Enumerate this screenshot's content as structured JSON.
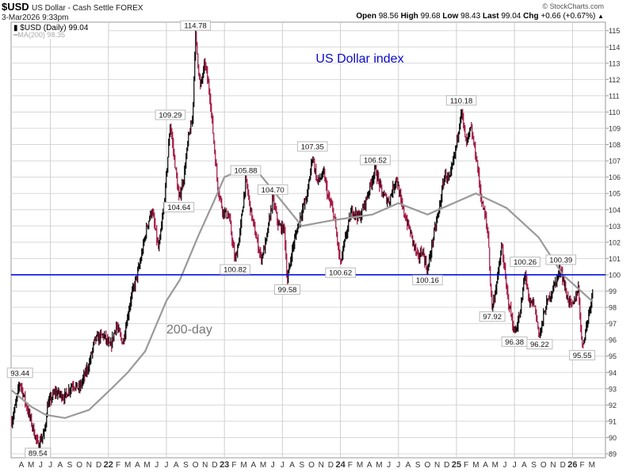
{
  "header": {
    "symbol": "$USD",
    "name": "US Dollar - Cash Settle FOREX",
    "datetime": "3-Mar2026 9:33pm",
    "copyright": "© StockCharts.com",
    "quote": {
      "open_label": "Open",
      "open": "98.56",
      "high_label": "High",
      "high": "99.68",
      "low_label": "Low",
      "low": "98.43",
      "last_label": "Last",
      "last": "99.04",
      "chg_label": "Chg",
      "chg": "+0.66 (+0.67%)",
      "direction": "▲"
    }
  },
  "legend": {
    "price": "$USD (Daily) 99.04",
    "ma": "MA(200) 98.35"
  },
  "colors": {
    "up": "#000000",
    "down": "#a0103c",
    "ma": "#9a9a9a",
    "hline": "#0010e0",
    "title": "#0a0ac8",
    "grid": "#d8d8d8"
  },
  "chart_data": {
    "type": "line",
    "title": "US Dollar index",
    "ma_annotation": "200-day",
    "time_unit": "months since Apr 2021",
    "ylim": [
      89,
      115
    ],
    "yticks": [
      89,
      90,
      91,
      92,
      93,
      94,
      95,
      96,
      97,
      98,
      99,
      100,
      101,
      102,
      103,
      104,
      105,
      106,
      107,
      108,
      109,
      110,
      111,
      112,
      113,
      114,
      115
    ],
    "horizontal_line": 100,
    "xticks": [
      {
        "t": 0,
        "label": "A"
      },
      {
        "t": 1,
        "label": "M"
      },
      {
        "t": 2,
        "label": "J"
      },
      {
        "t": 3,
        "label": "J"
      },
      {
        "t": 4,
        "label": "A"
      },
      {
        "t": 5,
        "label": "S"
      },
      {
        "t": 6,
        "label": "O"
      },
      {
        "t": 7,
        "label": "N"
      },
      {
        "t": 8,
        "label": "D"
      },
      {
        "t": 9,
        "label": "22",
        "year": true
      },
      {
        "t": 10,
        "label": "F"
      },
      {
        "t": 11,
        "label": "M"
      },
      {
        "t": 12,
        "label": "A"
      },
      {
        "t": 13,
        "label": "M"
      },
      {
        "t": 14,
        "label": "J"
      },
      {
        "t": 15,
        "label": "J"
      },
      {
        "t": 16,
        "label": "A"
      },
      {
        "t": 17,
        "label": "S"
      },
      {
        "t": 18,
        "label": "O"
      },
      {
        "t": 19,
        "label": "N"
      },
      {
        "t": 20,
        "label": "D"
      },
      {
        "t": 21,
        "label": "23",
        "year": true
      },
      {
        "t": 22,
        "label": "F"
      },
      {
        "t": 23,
        "label": "M"
      },
      {
        "t": 24,
        "label": "A"
      },
      {
        "t": 25,
        "label": "M"
      },
      {
        "t": 26,
        "label": "J"
      },
      {
        "t": 27,
        "label": "J"
      },
      {
        "t": 28,
        "label": "A"
      },
      {
        "t": 29,
        "label": "S"
      },
      {
        "t": 30,
        "label": "O"
      },
      {
        "t": 31,
        "label": "N"
      },
      {
        "t": 32,
        "label": "D"
      },
      {
        "t": 33,
        "label": "24",
        "year": true
      },
      {
        "t": 34,
        "label": "F"
      },
      {
        "t": 35,
        "label": "M"
      },
      {
        "t": 36,
        "label": "A"
      },
      {
        "t": 37,
        "label": "M"
      },
      {
        "t": 38,
        "label": "J"
      },
      {
        "t": 39,
        "label": "J"
      },
      {
        "t": 40,
        "label": "A"
      },
      {
        "t": 41,
        "label": "S"
      },
      {
        "t": 42,
        "label": "O"
      },
      {
        "t": 43,
        "label": "N"
      },
      {
        "t": 44,
        "label": "D"
      },
      {
        "t": 45,
        "label": "25",
        "year": true
      },
      {
        "t": 46,
        "label": "F"
      },
      {
        "t": 47,
        "label": "M"
      },
      {
        "t": 48,
        "label": "A"
      },
      {
        "t": 49,
        "label": "M"
      },
      {
        "t": 50,
        "label": "J"
      },
      {
        "t": 51,
        "label": "J"
      },
      {
        "t": 52,
        "label": "A"
      },
      {
        "t": 53,
        "label": "S"
      },
      {
        "t": 54,
        "label": "O"
      },
      {
        "t": 55,
        "label": "N"
      },
      {
        "t": 56,
        "label": "D"
      },
      {
        "t": 57,
        "label": "26",
        "year": true
      },
      {
        "t": 58,
        "label": "F"
      },
      {
        "t": 59,
        "label": "M"
      }
    ],
    "series": [
      {
        "name": "$USD (Daily)",
        "points": [
          [
            -1,
            91.0
          ],
          [
            -0.6,
            92.0
          ],
          [
            -0.15,
            93.44
          ],
          [
            0.5,
            92.0
          ],
          [
            1.0,
            91.0
          ],
          [
            1.7,
            89.54
          ],
          [
            2.4,
            90.3
          ],
          [
            2.7,
            92.0
          ],
          [
            3.5,
            92.8
          ],
          [
            4.5,
            92.5
          ],
          [
            5.3,
            93.3
          ],
          [
            6.0,
            93.0
          ],
          [
            7.0,
            94.5
          ],
          [
            7.6,
            96.0
          ],
          [
            8.5,
            96.3
          ],
          [
            9.2,
            95.5
          ],
          [
            9.8,
            96.9
          ],
          [
            10.5,
            95.8
          ],
          [
            11.3,
            98.5
          ],
          [
            12.2,
            100.5
          ],
          [
            13.0,
            103.0
          ],
          [
            13.5,
            104.0
          ],
          [
            14.2,
            101.5
          ],
          [
            14.8,
            104.5
          ],
          [
            15.4,
            109.29
          ],
          [
            16.3,
            104.64
          ],
          [
            16.8,
            106.0
          ],
          [
            17.3,
            108.5
          ],
          [
            17.7,
            109.5
          ],
          [
            18.0,
            114.78
          ],
          [
            18.5,
            111.5
          ],
          [
            19.0,
            113.0
          ],
          [
            19.5,
            111.0
          ],
          [
            20.0,
            107.5
          ],
          [
            20.3,
            105.5
          ],
          [
            20.8,
            104.0
          ],
          [
            21.5,
            103.5
          ],
          [
            22.1,
            100.82
          ],
          [
            22.6,
            102.5
          ],
          [
            23.2,
            105.88
          ],
          [
            23.7,
            104.0
          ],
          [
            24.2,
            102.5
          ],
          [
            24.8,
            101.0
          ],
          [
            25.3,
            102.0
          ],
          [
            26.0,
            104.7
          ],
          [
            26.6,
            103.0
          ],
          [
            27.2,
            102.8
          ],
          [
            27.5,
            99.58
          ],
          [
            28.0,
            101.5
          ],
          [
            28.8,
            103.5
          ],
          [
            29.6,
            105.0
          ],
          [
            30.1,
            107.35
          ],
          [
            30.6,
            105.7
          ],
          [
            31.3,
            106.2
          ],
          [
            31.7,
            104.8
          ],
          [
            32.3,
            103.8
          ],
          [
            33.0,
            100.62
          ],
          [
            33.6,
            102.5
          ],
          [
            34.2,
            104.0
          ],
          [
            35.0,
            103.5
          ],
          [
            35.7,
            104.7
          ],
          [
            36.6,
            106.52
          ],
          [
            37.3,
            105.0
          ],
          [
            38.0,
            104.5
          ],
          [
            38.8,
            106.0
          ],
          [
            39.3,
            104.3
          ],
          [
            40.3,
            102.5
          ],
          [
            41.0,
            101.0
          ],
          [
            41.5,
            101.5
          ],
          [
            42.0,
            100.16
          ],
          [
            42.5,
            102.0
          ],
          [
            43.2,
            104.0
          ],
          [
            43.8,
            106.2
          ],
          [
            44.3,
            105.8
          ],
          [
            45.0,
            108.0
          ],
          [
            45.5,
            110.18
          ],
          [
            46.0,
            108.0
          ],
          [
            46.5,
            109.0
          ],
          [
            47.1,
            107.0
          ],
          [
            47.4,
            105.5
          ],
          [
            47.6,
            104.5
          ],
          [
            48.0,
            103.5
          ],
          [
            48.3,
            102.3
          ],
          [
            48.5,
            99.5
          ],
          [
            48.7,
            97.92
          ],
          [
            49.3,
            100.0
          ],
          [
            49.7,
            101.8
          ],
          [
            50.2,
            99.0
          ],
          [
            51.0,
            96.38
          ],
          [
            51.6,
            97.6
          ],
          [
            52.1,
            100.26
          ],
          [
            52.5,
            98.2
          ],
          [
            53.0,
            98.3
          ],
          [
            53.6,
            96.22
          ],
          [
            54.2,
            98.0
          ],
          [
            55.0,
            99.2
          ],
          [
            55.8,
            100.39
          ],
          [
            56.4,
            98.7
          ],
          [
            57.0,
            98.0
          ],
          [
            57.6,
            99.2
          ],
          [
            58.0,
            95.55
          ],
          [
            58.5,
            97.0
          ],
          [
            59.1,
            99.04
          ]
        ]
      },
      {
        "name": "MA(200)",
        "points": [
          [
            -1,
            92.9
          ],
          [
            1,
            91.9
          ],
          [
            2.5,
            91.4
          ],
          [
            4.5,
            91.2
          ],
          [
            7,
            91.7
          ],
          [
            9.3,
            93.0
          ],
          [
            11,
            94.0
          ],
          [
            12.8,
            95.3
          ],
          [
            15,
            98.4
          ],
          [
            16.4,
            99.7
          ],
          [
            18.3,
            102.4
          ],
          [
            19.9,
            104.5
          ],
          [
            21,
            106.0
          ],
          [
            23.3,
            106.6
          ],
          [
            24.5,
            106.3
          ],
          [
            26,
            105.2
          ],
          [
            29,
            103.0
          ],
          [
            32.2,
            103.35
          ],
          [
            36.3,
            103.7
          ],
          [
            39,
            104.4
          ],
          [
            42,
            103.7
          ],
          [
            47,
            105.0
          ],
          [
            50.2,
            104.1
          ],
          [
            53.5,
            102.3
          ],
          [
            56,
            100.0
          ],
          [
            59.1,
            98.35
          ]
        ]
      }
    ],
    "annotations": [
      {
        "t": -0.15,
        "value": 93.44,
        "label": "93.44",
        "pos": "above"
      },
      {
        "t": 1.7,
        "value": 89.54,
        "label": "89.54",
        "pos": "below"
      },
      {
        "t": 15.4,
        "value": 109.29,
        "label": "109.29",
        "pos": "above"
      },
      {
        "t": 16.3,
        "value": 104.64,
        "label": "104.64",
        "pos": "below"
      },
      {
        "t": 18.0,
        "value": 114.78,
        "label": "114.78",
        "pos": "above"
      },
      {
        "t": 22.1,
        "value": 100.82,
        "label": "100.82",
        "pos": "below"
      },
      {
        "t": 23.2,
        "value": 105.88,
        "label": "105.88",
        "pos": "above"
      },
      {
        "t": 26.0,
        "value": 104.7,
        "label": "104.70",
        "pos": "above"
      },
      {
        "t": 27.5,
        "value": 99.58,
        "label": "99.58",
        "pos": "below"
      },
      {
        "t": 30.1,
        "value": 107.35,
        "label": "107.35",
        "pos": "above"
      },
      {
        "t": 33.0,
        "value": 100.62,
        "label": "100.62",
        "pos": "below"
      },
      {
        "t": 36.6,
        "value": 106.52,
        "label": "106.52",
        "pos": "above"
      },
      {
        "t": 42.0,
        "value": 100.16,
        "label": "100.16",
        "pos": "below"
      },
      {
        "t": 45.5,
        "value": 110.18,
        "label": "110.18",
        "pos": "above"
      },
      {
        "t": 48.7,
        "value": 97.92,
        "label": "97.92",
        "pos": "below"
      },
      {
        "t": 51.0,
        "value": 96.38,
        "label": "96.38",
        "pos": "below"
      },
      {
        "t": 52.1,
        "value": 100.26,
        "label": "100.26",
        "pos": "above"
      },
      {
        "t": 53.6,
        "value": 96.22,
        "label": "96.22",
        "pos": "below"
      },
      {
        "t": 55.8,
        "value": 100.39,
        "label": "100.39",
        "pos": "above"
      },
      {
        "t": 58.0,
        "value": 95.55,
        "label": "95.55",
        "pos": "below"
      }
    ]
  }
}
